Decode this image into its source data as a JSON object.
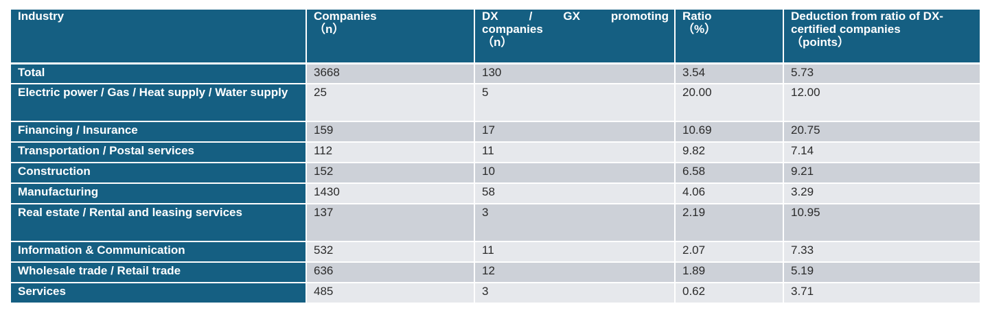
{
  "table": {
    "headers": [
      {
        "line1": "Industry",
        "line2": "",
        "line3": ""
      },
      {
        "line1": "Companies",
        "line2": "（n）",
        "line3": ""
      },
      {
        "line1": "DX / GX promoting",
        "line2": "companies",
        "line3": "（n）"
      },
      {
        "line1": "Ratio",
        "line2": "（%）",
        "line3": ""
      },
      {
        "line1": "Deduction from ratio of DX-",
        "line2": "certified companies",
        "line3": "（points）"
      }
    ],
    "rows": [
      {
        "industry": "Total",
        "companies": "3668",
        "promoting": "130",
        "ratio": "3.54",
        "deduction": "5.73"
      },
      {
        "industry": "Electric power / Gas / Heat supply / Water supply",
        "companies": "25",
        "promoting": "5",
        "ratio": "20.00",
        "deduction": "12.00"
      },
      {
        "industry": "Financing / Insurance",
        "companies": "159",
        "promoting": "17",
        "ratio": "10.69",
        "deduction": "20.75"
      },
      {
        "industry": "Transportation / Postal services",
        "companies": "112",
        "promoting": "11",
        "ratio": "9.82",
        "deduction": "7.14"
      },
      {
        "industry": "Construction",
        "companies": "152",
        "promoting": "10",
        "ratio": "6.58",
        "deduction": "9.21"
      },
      {
        "industry": "Manufacturing",
        "companies": "1430",
        "promoting": "58",
        "ratio": "4.06",
        "deduction": "3.29"
      },
      {
        "industry": "Real estate / Rental and leasing services",
        "companies": "137",
        "promoting": "3",
        "ratio": "2.19",
        "deduction": "10.95"
      },
      {
        "industry": "Information & Communication",
        "companies": "532",
        "promoting": "11",
        "ratio": "2.07",
        "deduction": "7.33"
      },
      {
        "industry": "Wholesale trade / Retail trade",
        "companies": "636",
        "promoting": "12",
        "ratio": "1.89",
        "deduction": "5.19"
      },
      {
        "industry": "Services",
        "companies": "485",
        "promoting": "3",
        "ratio": "0.62",
        "deduction": "3.71"
      }
    ]
  },
  "colors": {
    "header_bg": "#155f82",
    "row_dark": "#cdd1d8",
    "row_light": "#e6e8ec"
  }
}
